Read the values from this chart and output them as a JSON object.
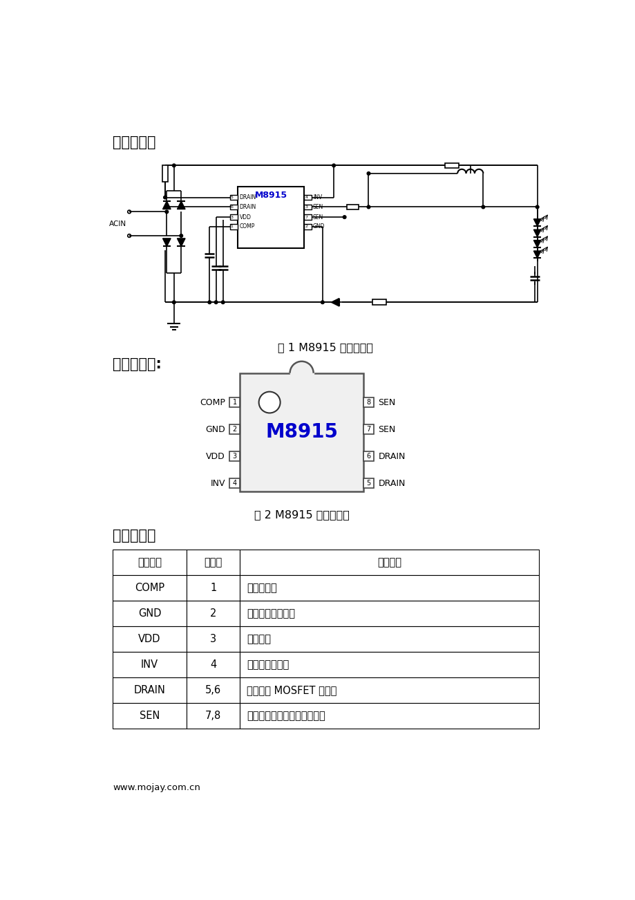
{
  "bg_color": "#ffffff",
  "title1": "典型应用：",
  "title2": "管脚排列图:",
  "title3": "管脚描述：",
  "fig1_caption": "图 1 M8915 典型应用图",
  "fig2_caption": "图 2 M8915 管脚排列图",
  "chip_label": "M8915",
  "left_pins": [
    "COMP",
    "GND",
    "VDD",
    "INV"
  ],
  "left_pin_nums": [
    "1",
    "2",
    "3",
    "4"
  ],
  "right_pins": [
    "SEN",
    "SEN",
    "DRAIN",
    "DRAIN"
  ],
  "right_pin_nums": [
    "8",
    "7",
    "6",
    "5"
  ],
  "table_headers": [
    "管脚名称",
    "管脚号",
    "管脚描述"
  ],
  "table_rows": [
    [
      "COMP",
      "1",
      "环路补偿点"
    ],
    [
      "GND",
      "2",
      "芯片信号和功率地"
    ],
    [
      "VDD",
      "3",
      "芯片供电"
    ],
    [
      "INV",
      "4",
      "反馈信号采样端"
    ],
    [
      "DRAIN",
      "5,6",
      "内部高压 MOSFET 的漏极"
    ],
    [
      "SEN",
      "7,8",
      "电流采样端，接采样电阻到地"
    ]
  ],
  "footer": "www.mojay.com.cn",
  "circuit_chip_label": "M8915",
  "acin_label": "ACIN"
}
